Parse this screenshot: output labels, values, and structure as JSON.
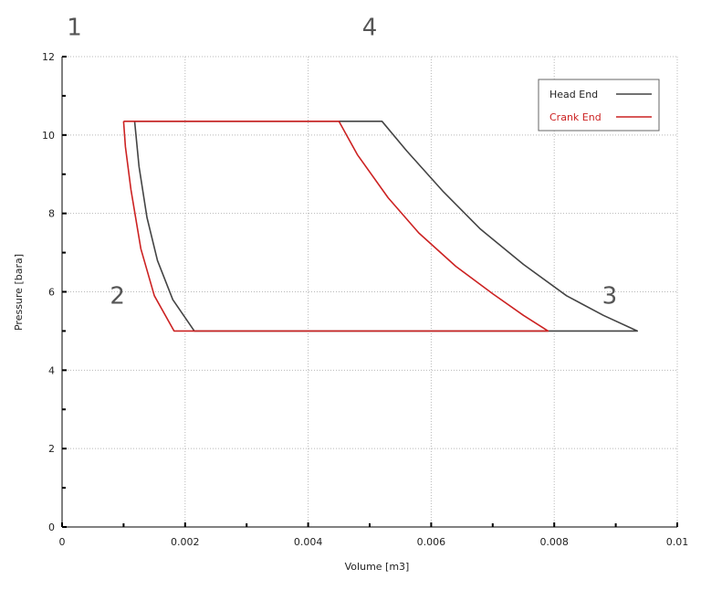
{
  "chart_data": {
    "type": "line",
    "title": "",
    "xlabel": "Volume [m3]",
    "ylabel": "Pressure [bara]",
    "xlim": [
      0,
      0.01
    ],
    "ylim": [
      0,
      12
    ],
    "x_ticks": [
      0,
      0.002,
      0.004,
      0.006,
      0.008,
      0.01
    ],
    "x_tick_labels": [
      "0",
      "0.002",
      "0.004",
      "0.006",
      "0.008",
      "0.01"
    ],
    "y_ticks": [
      0,
      2,
      4,
      6,
      8,
      10,
      12
    ],
    "y_tick_labels": [
      "0",
      "2",
      "4",
      "6",
      "8",
      "10",
      "12"
    ],
    "grid": "dotted",
    "legend_position": "top-right",
    "series": [
      {
        "name": "Head End",
        "color": "#444444",
        "points": [
          [
            0.00118,
            10.35
          ],
          [
            0.0052,
            10.35
          ],
          [
            0.0056,
            9.6
          ],
          [
            0.0062,
            8.55
          ],
          [
            0.0068,
            7.6
          ],
          [
            0.0075,
            6.7
          ],
          [
            0.0082,
            5.9
          ],
          [
            0.0088,
            5.4
          ],
          [
            0.00935,
            5.0
          ],
          [
            0.00215,
            5.0
          ],
          [
            0.0018,
            5.8
          ],
          [
            0.00155,
            6.8
          ],
          [
            0.00138,
            7.9
          ],
          [
            0.00125,
            9.2
          ],
          [
            0.00118,
            10.35
          ]
        ]
      },
      {
        "name": "Crank End",
        "color": "#cc2222",
        "points": [
          [
            0.001,
            10.35
          ],
          [
            0.0045,
            10.35
          ],
          [
            0.0048,
            9.5
          ],
          [
            0.0053,
            8.4
          ],
          [
            0.0058,
            7.5
          ],
          [
            0.0064,
            6.65
          ],
          [
            0.007,
            5.95
          ],
          [
            0.0075,
            5.4
          ],
          [
            0.0079,
            5.0
          ],
          [
            0.00182,
            5.0
          ],
          [
            0.0015,
            5.9
          ],
          [
            0.00128,
            7.1
          ],
          [
            0.00112,
            8.6
          ],
          [
            0.00103,
            9.7
          ],
          [
            0.001,
            10.35
          ]
        ]
      }
    ],
    "annotations": [
      {
        "text": "1",
        "x": 0.0002,
        "y": 12.55
      },
      {
        "text": "4",
        "x": 0.005,
        "y": 12.55
      },
      {
        "text": "2",
        "x": 0.0009,
        "y": 5.7
      },
      {
        "text": "3",
        "x": 0.0089,
        "y": 5.7
      }
    ]
  }
}
